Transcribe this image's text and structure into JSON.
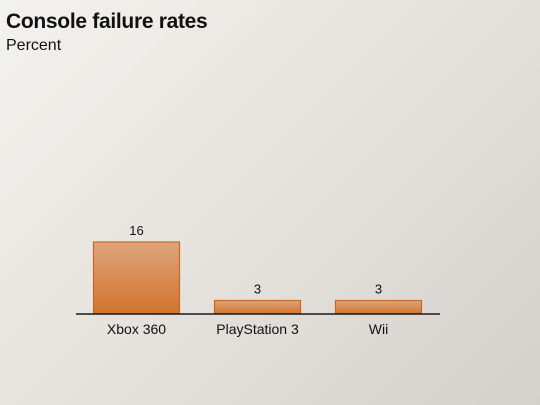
{
  "chart_data": {
    "type": "bar",
    "title": "Console failure rates",
    "subtitle": "Percent",
    "categories": [
      "Xbox 360",
      "PlayStation 3",
      "Wii"
    ],
    "values": [
      16,
      3,
      3
    ],
    "ylim": [
      0,
      16
    ],
    "grid": false,
    "legend": "none",
    "colors": {
      "bar_top": "#dfa57a",
      "bar_bottom": "#d2732e",
      "bar_stroke": "#c4682a",
      "axis": "#1a1a1a"
    }
  }
}
